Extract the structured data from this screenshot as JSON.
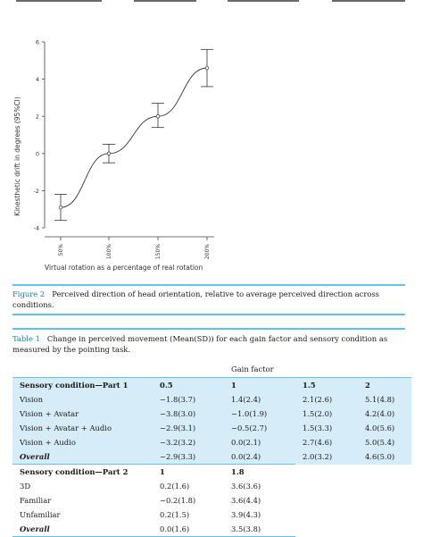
{
  "chart_data": {
    "type": "line",
    "xlabel": "Virtual rotation as a percentage of real rotation",
    "ylabel": "Kinesthetic drift in degrees (95%CI)",
    "categories": [
      "50%",
      "100%",
      "150%",
      "200%"
    ],
    "y_ticks": [
      "6",
      "4",
      "2",
      "0",
      "-2",
      "-4"
    ],
    "ylim": [
      -4,
      6
    ],
    "series": [
      {
        "values": [
          -2.9,
          0.0,
          2.0,
          4.6
        ],
        "ci_low": [
          -3.6,
          -0.5,
          1.4,
          3.6
        ],
        "ci_high": [
          -2.2,
          0.5,
          2.7,
          5.6
        ]
      }
    ],
    "line_color": "#333333"
  },
  "figure_caption": {
    "label": "Figure 2",
    "text": "Perceived direction of head orientation, relative to average perceived direction across conditions."
  },
  "table_caption": {
    "label": "Table 1",
    "text": "Change in perceived movement (Mean(SD)) for each gain factor and sensory condition as measured by the pointing task."
  },
  "table": {
    "gain_header": "Gain factor",
    "part1": {
      "header": [
        "Sensory condition—Part 1",
        "0.5",
        "1",
        "1.5",
        "2"
      ],
      "rows": [
        [
          "Vision",
          "−1.8(3.7)",
          "1.4(2.4)",
          "2.1(2.6)",
          "5.1(4.8)"
        ],
        [
          "Vision + Avatar",
          "−3.8(3.0)",
          "−1.0(1.9)",
          "1.5(2.0)",
          "4.2(4.0)"
        ],
        [
          "Vision + Avatar + Audio",
          "−2.9(3.1)",
          "−0.5(2.7)",
          "1.5(3.3)",
          "4.0(5.6)"
        ],
        [
          "Vision + Audio",
          "−3.2(3.2)",
          "0.0(2.1)",
          "2.7(4.6)",
          "5.0(5.4)"
        ]
      ],
      "overall": [
        "Overall",
        "−2.9(3.3)",
        "0.0(2.4)",
        "2.0(3.2)",
        "4.6(5.0)"
      ]
    },
    "part2": {
      "header": [
        "Sensory condition—Part 2",
        "1",
        "1.8"
      ],
      "rows": [
        [
          "3D",
          "0.2(1.6)",
          "3.6(3.6)"
        ],
        [
          "Familiar",
          "−0.2(1.8)",
          "3.6(4.4)"
        ],
        [
          "Unfamiliar",
          "0.2(1.5)",
          "3.9(4.3)"
        ]
      ],
      "overall": [
        "Overall",
        "0.0(1.6)",
        "3.5(3.8)"
      ]
    }
  }
}
